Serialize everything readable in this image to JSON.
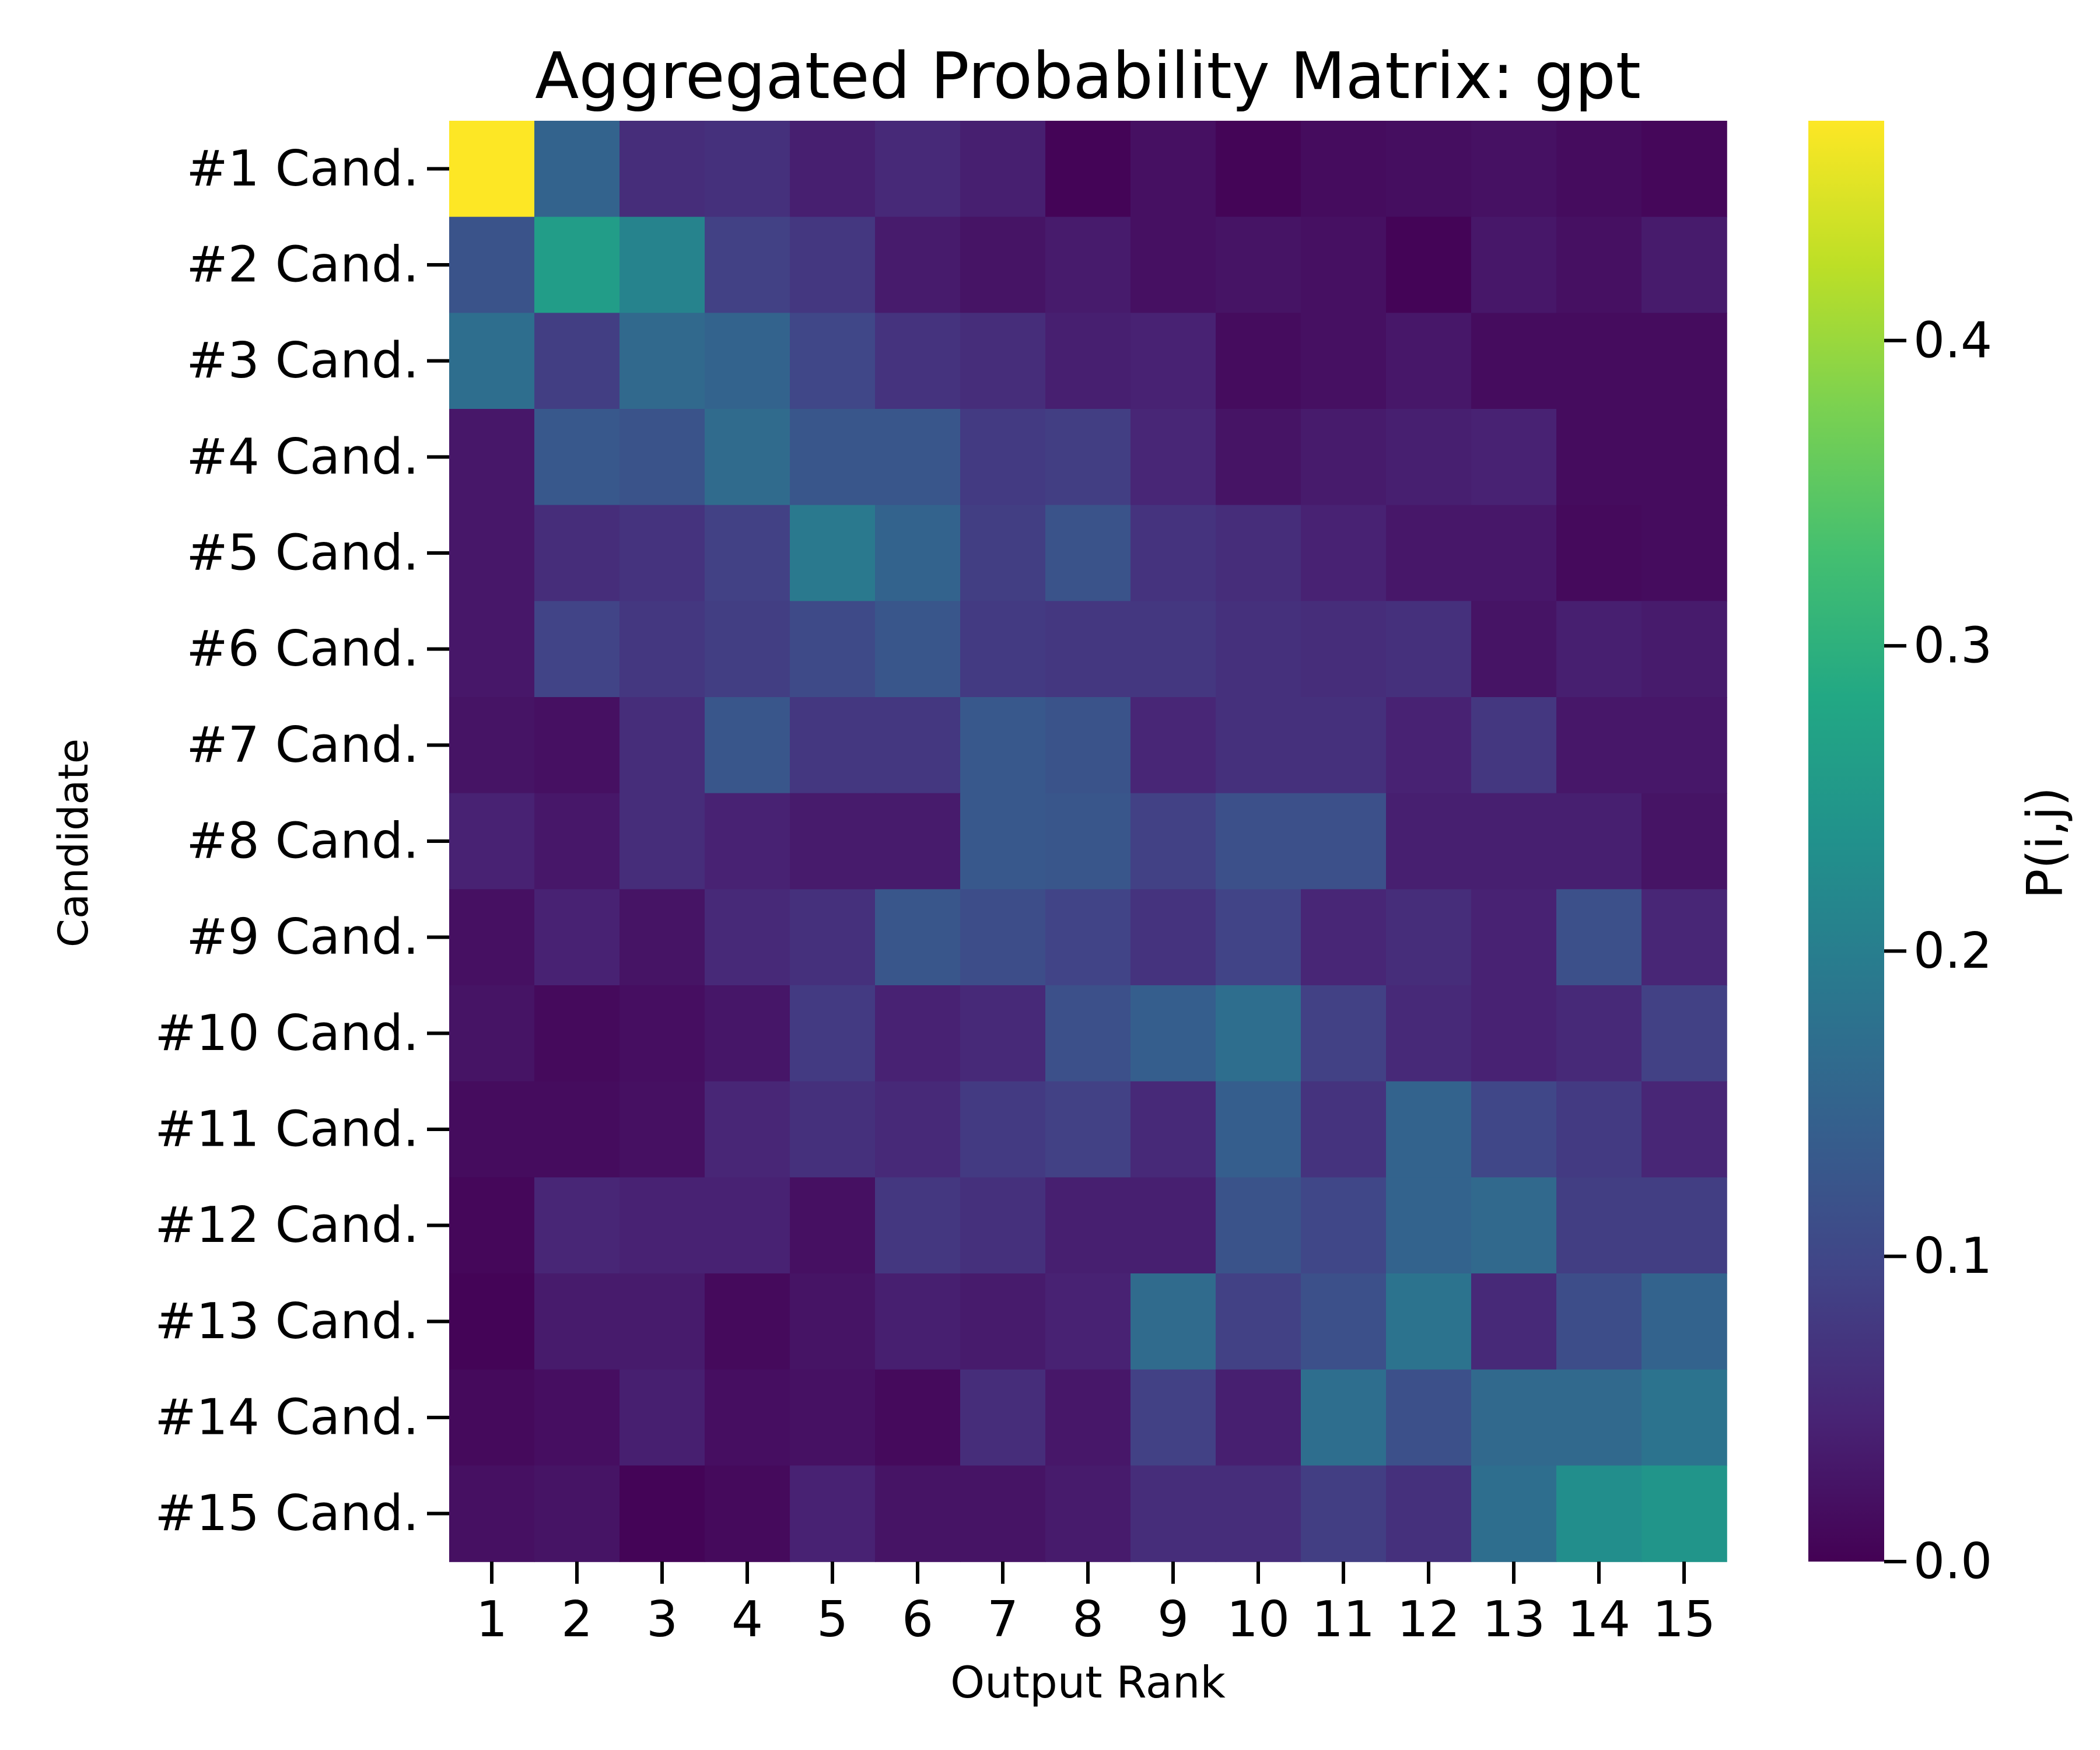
{
  "chart_data": {
    "type": "heatmap",
    "title": "Aggregated Probability Matrix: gpt",
    "xlabel": "Output Rank",
    "ylabel": "Candidate",
    "colorbar_label": "P(i,j)",
    "colormap": "viridis",
    "value_range": [
      0.0,
      0.472
    ],
    "colorbar_ticks": [
      "0.0",
      "0.1",
      "0.2",
      "0.3",
      "0.4"
    ],
    "colorbar_tick_values": [
      0.0,
      0.1,
      0.2,
      0.3,
      0.4
    ],
    "x_categories": [
      "1",
      "2",
      "3",
      "4",
      "5",
      "6",
      "7",
      "8",
      "9",
      "10",
      "11",
      "12",
      "13",
      "14",
      "15"
    ],
    "y_categories": [
      "#1 Cand.",
      "#2 Cand.",
      "#3 Cand.",
      "#4 Cand.",
      "#5 Cand.",
      "#6 Cand.",
      "#7 Cand.",
      "#8 Cand.",
      "#9 Cand.",
      "#10 Cand.",
      "#11 Cand.",
      "#12 Cand.",
      "#13 Cand.",
      "#14 Cand.",
      "#15 Cand."
    ],
    "matrix": [
      [
        0.472,
        0.15,
        0.06,
        0.065,
        0.04,
        0.055,
        0.04,
        0.004,
        0.02,
        0.005,
        0.015,
        0.017,
        0.022,
        0.015,
        0.008
      ],
      [
        0.12,
        0.26,
        0.21,
        0.09,
        0.075,
        0.035,
        0.025,
        0.035,
        0.02,
        0.025,
        0.02,
        0.004,
        0.03,
        0.02,
        0.035
      ],
      [
        0.17,
        0.085,
        0.16,
        0.15,
        0.1,
        0.07,
        0.06,
        0.04,
        0.045,
        0.015,
        0.02,
        0.03,
        0.015,
        0.015,
        0.015
      ],
      [
        0.03,
        0.13,
        0.12,
        0.165,
        0.125,
        0.125,
        0.08,
        0.085,
        0.05,
        0.025,
        0.035,
        0.04,
        0.045,
        0.015,
        0.015
      ],
      [
        0.03,
        0.06,
        0.07,
        0.09,
        0.19,
        0.15,
        0.085,
        0.12,
        0.07,
        0.06,
        0.045,
        0.03,
        0.03,
        0.012,
        0.015
      ],
      [
        0.03,
        0.095,
        0.075,
        0.085,
        0.105,
        0.125,
        0.08,
        0.075,
        0.075,
        0.065,
        0.06,
        0.065,
        0.025,
        0.04,
        0.035
      ],
      [
        0.025,
        0.02,
        0.06,
        0.125,
        0.075,
        0.075,
        0.13,
        0.12,
        0.05,
        0.065,
        0.065,
        0.045,
        0.075,
        0.03,
        0.03
      ],
      [
        0.045,
        0.03,
        0.06,
        0.045,
        0.035,
        0.035,
        0.13,
        0.125,
        0.09,
        0.115,
        0.115,
        0.04,
        0.04,
        0.04,
        0.025
      ],
      [
        0.02,
        0.045,
        0.025,
        0.055,
        0.065,
        0.125,
        0.11,
        0.095,
        0.07,
        0.095,
        0.05,
        0.06,
        0.045,
        0.115,
        0.05
      ],
      [
        0.025,
        0.012,
        0.018,
        0.028,
        0.08,
        0.045,
        0.055,
        0.115,
        0.14,
        0.17,
        0.09,
        0.055,
        0.045,
        0.055,
        0.09
      ],
      [
        0.015,
        0.015,
        0.02,
        0.05,
        0.065,
        0.055,
        0.08,
        0.09,
        0.055,
        0.14,
        0.07,
        0.15,
        0.1,
        0.08,
        0.05
      ],
      [
        0.008,
        0.05,
        0.045,
        0.045,
        0.02,
        0.075,
        0.065,
        0.04,
        0.04,
        0.12,
        0.1,
        0.15,
        0.16,
        0.085,
        0.085
      ],
      [
        0.004,
        0.035,
        0.035,
        0.012,
        0.025,
        0.04,
        0.035,
        0.045,
        0.165,
        0.09,
        0.115,
        0.18,
        0.055,
        0.11,
        0.15
      ],
      [
        0.012,
        0.018,
        0.04,
        0.018,
        0.022,
        0.012,
        0.06,
        0.03,
        0.09,
        0.04,
        0.17,
        0.115,
        0.16,
        0.16,
        0.18
      ],
      [
        0.02,
        0.025,
        0.004,
        0.012,
        0.045,
        0.025,
        0.025,
        0.035,
        0.06,
        0.06,
        0.085,
        0.065,
        0.17,
        0.23,
        0.245
      ]
    ]
  }
}
